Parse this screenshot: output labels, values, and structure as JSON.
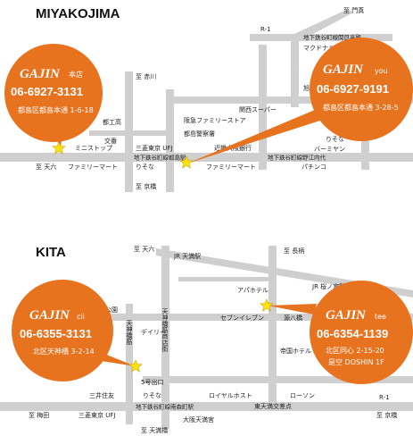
{
  "miyakojima": {
    "title": "MIYAKOJIMA",
    "shops": [
      {
        "name": "GAJIN",
        "tag": "本店",
        "phone": "06-6927-3131",
        "address": "都島区都島本通 1-6-18"
      },
      {
        "name": "GAJIN",
        "tag": "you",
        "phone": "06-6927-9191",
        "address": "都島区都島本通 3-28-5"
      }
    ],
    "labels": [
      "至 門真",
      "R-1",
      "地下鉄谷町線関目高殿",
      "マクドナルド",
      "至 赤川",
      "関西スーパー",
      "旭通商店街",
      "都工高",
      "交番",
      "阪急ファミリーストア",
      "都島警察署",
      "ミニストップ",
      "三菱東京 UFJ",
      "近畿大阪銀行",
      "りそな",
      "バーミヤン",
      "至 天六",
      "地下鉄谷町線都島駅",
      "地下鉄谷町線野江内代",
      "ファミリーマート",
      "りそな",
      "ファミリーマート",
      "パチンコ",
      "至 京橋"
    ]
  },
  "kita": {
    "title": "KITA",
    "shops": [
      {
        "name": "GAJIN",
        "tag": "cii",
        "phone": "06-6355-3131",
        "address": "北区天神橋 3-2-14"
      },
      {
        "name": "GAJIN",
        "tag": "tee",
        "phone": "06-6354-1139",
        "address": "北区同心 2-15-20",
        "building": "是空 DOSHIN 1F"
      }
    ],
    "labels": [
      "至 天六",
      "JR 天満駅",
      "至 長柄",
      "JR 桜ノ宮駅",
      "アパホテル",
      "扇町公園",
      "天神橋筋",
      "天神橋筋商店街",
      "セブンイレブン",
      "源八橋",
      "デイリー",
      "帝国ホテル",
      "5号出口",
      "三井住友",
      "りそな",
      "ロイヤルホスト",
      "ローソン",
      "R-1",
      "至 梅田",
      "三菱東京 UFJ",
      "地下鉄谷町線南森町駅",
      "東天満交差点",
      "至 京橋",
      "至 天満橋",
      "大阪天満宮"
    ]
  }
}
